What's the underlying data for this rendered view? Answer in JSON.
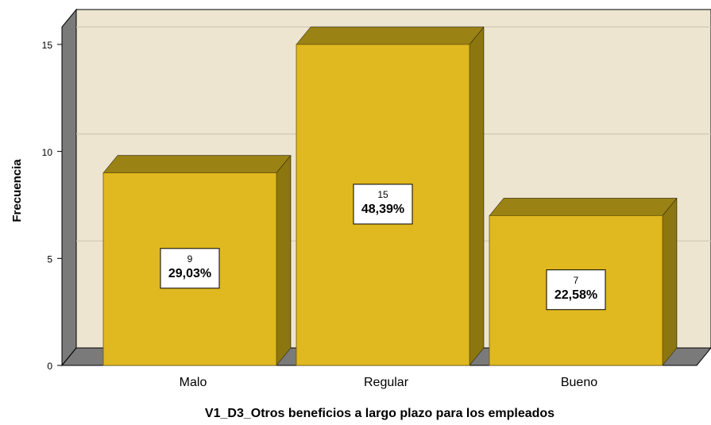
{
  "chart_data": {
    "type": "bar3d",
    "categories": [
      "Malo",
      "Regular",
      "Bueno"
    ],
    "values": [
      9,
      15,
      7
    ],
    "percentage_labels": [
      "29,03%",
      "48,39%",
      "22,58%"
    ],
    "color": "#e0b820",
    "ylim": [
      0,
      16
    ],
    "yticks": [
      0,
      5,
      10,
      15
    ],
    "grid": true,
    "ylabel": "Frecuencia",
    "xlabel": "V1_D3_Otros beneficios a largo plazo para los empleados"
  }
}
